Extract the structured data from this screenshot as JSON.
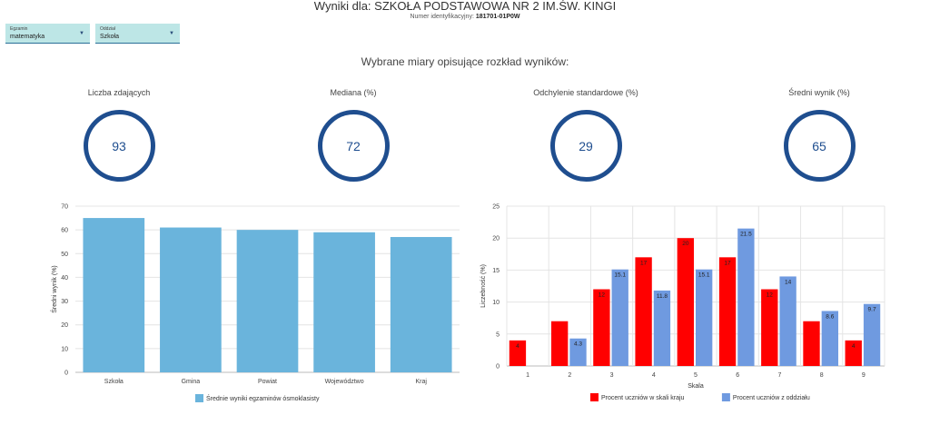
{
  "header": {
    "title": "Wyniki dla: SZKOŁA PODSTAWOWA NR 2 IM.ŚW. KINGI",
    "id_label": "Numer identyfikacyjny:",
    "id_value": "181701-01P0W"
  },
  "filters": {
    "exam": {
      "label": "Egzamin",
      "value": "matematyka"
    },
    "unit": {
      "label": "Oddział",
      "value": "Szkoła"
    }
  },
  "section_title": "Wybrane miary opisujące rozkład wyników:",
  "stats": [
    {
      "label": "Liczba zdających",
      "value": "93"
    },
    {
      "label": "Mediana (%)",
      "value": "72"
    },
    {
      "label": "Odchylenie standardowe (%)",
      "value": "29"
    },
    {
      "label": "Średni wynik (%)",
      "value": "65"
    }
  ],
  "chart_data": [
    {
      "type": "bar",
      "categories": [
        "Szkoła",
        "Gmina",
        "Powiat",
        "Województwo",
        "Kraj"
      ],
      "series": [
        {
          "name": "Średnie wyniki egzaminów ósmoklasisty",
          "values": [
            65,
            61,
            60,
            59,
            57
          ],
          "color": "#6ab4dc"
        }
      ],
      "ylabel": "Średni wynik (%)",
      "ylim": [
        0,
        70
      ],
      "yticks": [
        0,
        10,
        20,
        30,
        40,
        50,
        60,
        70
      ],
      "grid": true,
      "legend": "bottom"
    },
    {
      "type": "bar",
      "categories": [
        "1",
        "2",
        "3",
        "4",
        "5",
        "6",
        "7",
        "8",
        "9"
      ],
      "series": [
        {
          "name": "Procent uczniów w skali kraju",
          "values": [
            4,
            7,
            12,
            17,
            20,
            17,
            12,
            7,
            4
          ],
          "labels": [
            "4",
            "",
            "12",
            "17",
            "20",
            "17",
            "12",
            "",
            "4"
          ],
          "color": "#ff0000"
        },
        {
          "name": "Procent uczniów z oddziału",
          "values": [
            0,
            4.3,
            15.1,
            11.8,
            15.1,
            21.5,
            14,
            8.6,
            9.7
          ],
          "labels": [
            "",
            "4.3",
            "15.1",
            "11.8",
            "15.1",
            "21.5",
            "14",
            "8.6",
            "9.7"
          ],
          "color": "#6f9ae0"
        }
      ],
      "xlabel": "Skala",
      "ylabel": "Liczebność (%)",
      "ylim": [
        0,
        25
      ],
      "yticks": [
        0,
        5,
        10,
        15,
        20,
        25
      ],
      "grid": true,
      "legend": "bottom"
    }
  ]
}
